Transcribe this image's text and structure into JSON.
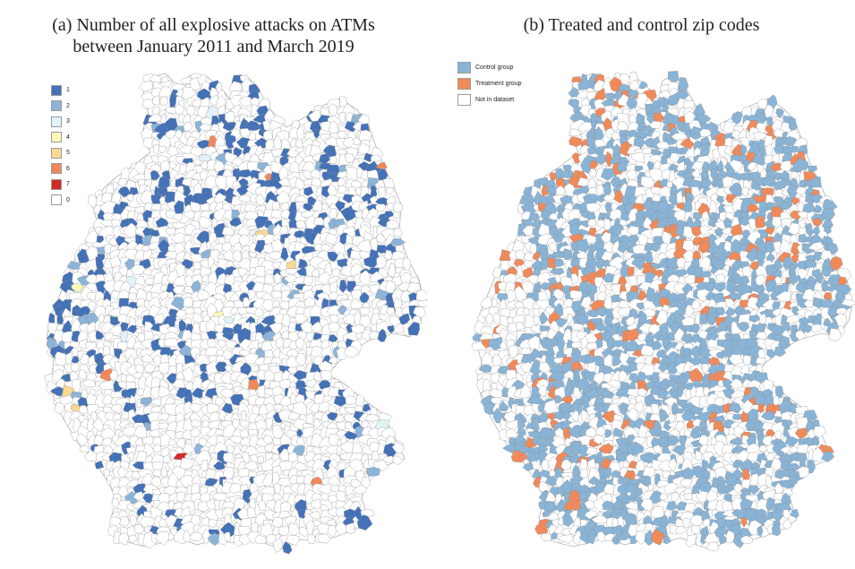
{
  "panels": {
    "a": {
      "title_line1": "(a) Number of all explosive attacks on ATMs",
      "title_line2": "between January 2011 and March 2019",
      "legend": [
        {
          "label": "1",
          "color": "#4472b8"
        },
        {
          "label": "2",
          "color": "#8cb4d8"
        },
        {
          "label": "3",
          "color": "#e2f2f9"
        },
        {
          "label": "4",
          "color": "#fbf8b8"
        },
        {
          "label": "5",
          "color": "#f9d992"
        },
        {
          "label": "6",
          "color": "#f2885a"
        },
        {
          "label": "7",
          "color": "#d22a26"
        },
        {
          "label": "0",
          "color": "#ffffff"
        }
      ]
    },
    "b": {
      "title_line1": "(b) Treated and control zip codes",
      "legend": [
        {
          "label": "Control group",
          "color": "#8ab4d6"
        },
        {
          "label": "Treatment group",
          "color": "#f08a5a"
        },
        {
          "label": "Not in dataset",
          "color": "#ffffff"
        }
      ]
    }
  },
  "colors": {
    "border": "#8a8a8a",
    "background": "#ffffff"
  }
}
